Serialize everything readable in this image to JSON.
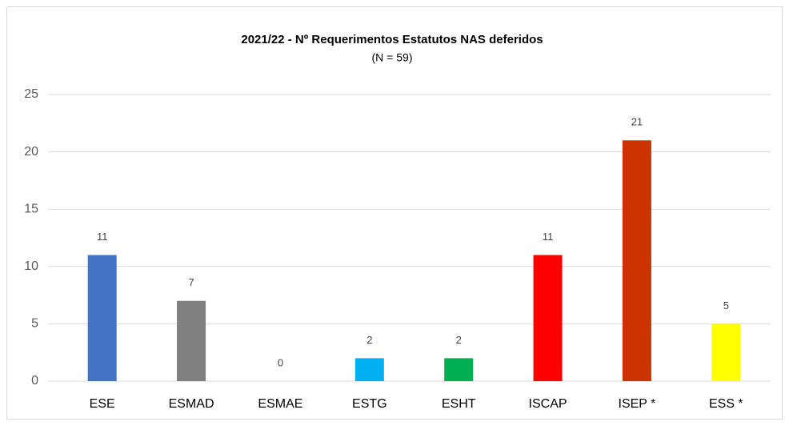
{
  "chart_data": {
    "type": "bar",
    "title": "2021/22 - Nº Requerimentos Estatutos NAS deferidos",
    "subtitle": "(N = 59)",
    "categories": [
      "ESE",
      "ESMAD",
      "ESMAE",
      "ESTG",
      "ESHT",
      "ISCAP",
      "ISEP *",
      "ESS *"
    ],
    "values": [
      11,
      7,
      0,
      2,
      2,
      11,
      21,
      5
    ],
    "colors": [
      "#4472c4",
      "#808080",
      "#a5a5a5",
      "#00b0f0",
      "#00b050",
      "#ff0000",
      "#cc3300",
      "#ffff00"
    ],
    "ylim": [
      0,
      25
    ],
    "yticks": [
      0,
      5,
      10,
      15,
      20,
      25
    ],
    "grid": true
  }
}
